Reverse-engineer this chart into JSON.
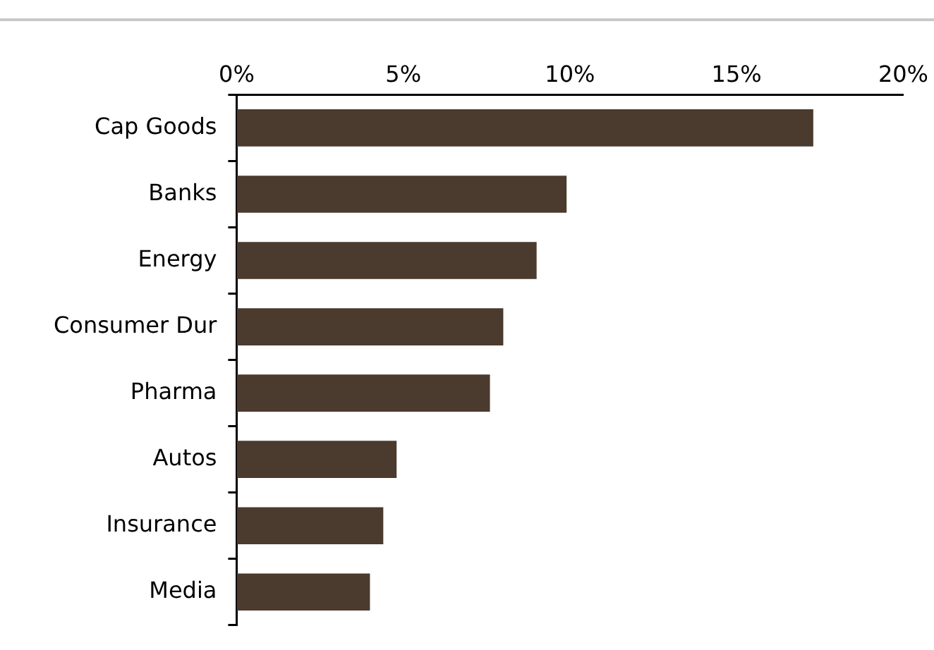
{
  "chart_data": {
    "type": "bar",
    "orientation": "horizontal",
    "categories": [
      "Cap Goods",
      "Banks",
      "Energy",
      "Consumer Dur",
      "Pharma",
      "Autos",
      "Insurance",
      "Media"
    ],
    "values": [
      17.3,
      9.9,
      9.0,
      8.0,
      7.6,
      4.8,
      4.4,
      4.0
    ],
    "color": "#4b3a2e",
    "xlim": [
      0,
      20
    ],
    "xticks": [
      {
        "value": 0,
        "label": "0%"
      },
      {
        "value": 5,
        "label": "5%"
      },
      {
        "value": 10,
        "label": "10%"
      },
      {
        "value": 15,
        "label": "15%"
      },
      {
        "value": 20,
        "label": "20%"
      }
    ],
    "grid": false,
    "legend": false
  }
}
